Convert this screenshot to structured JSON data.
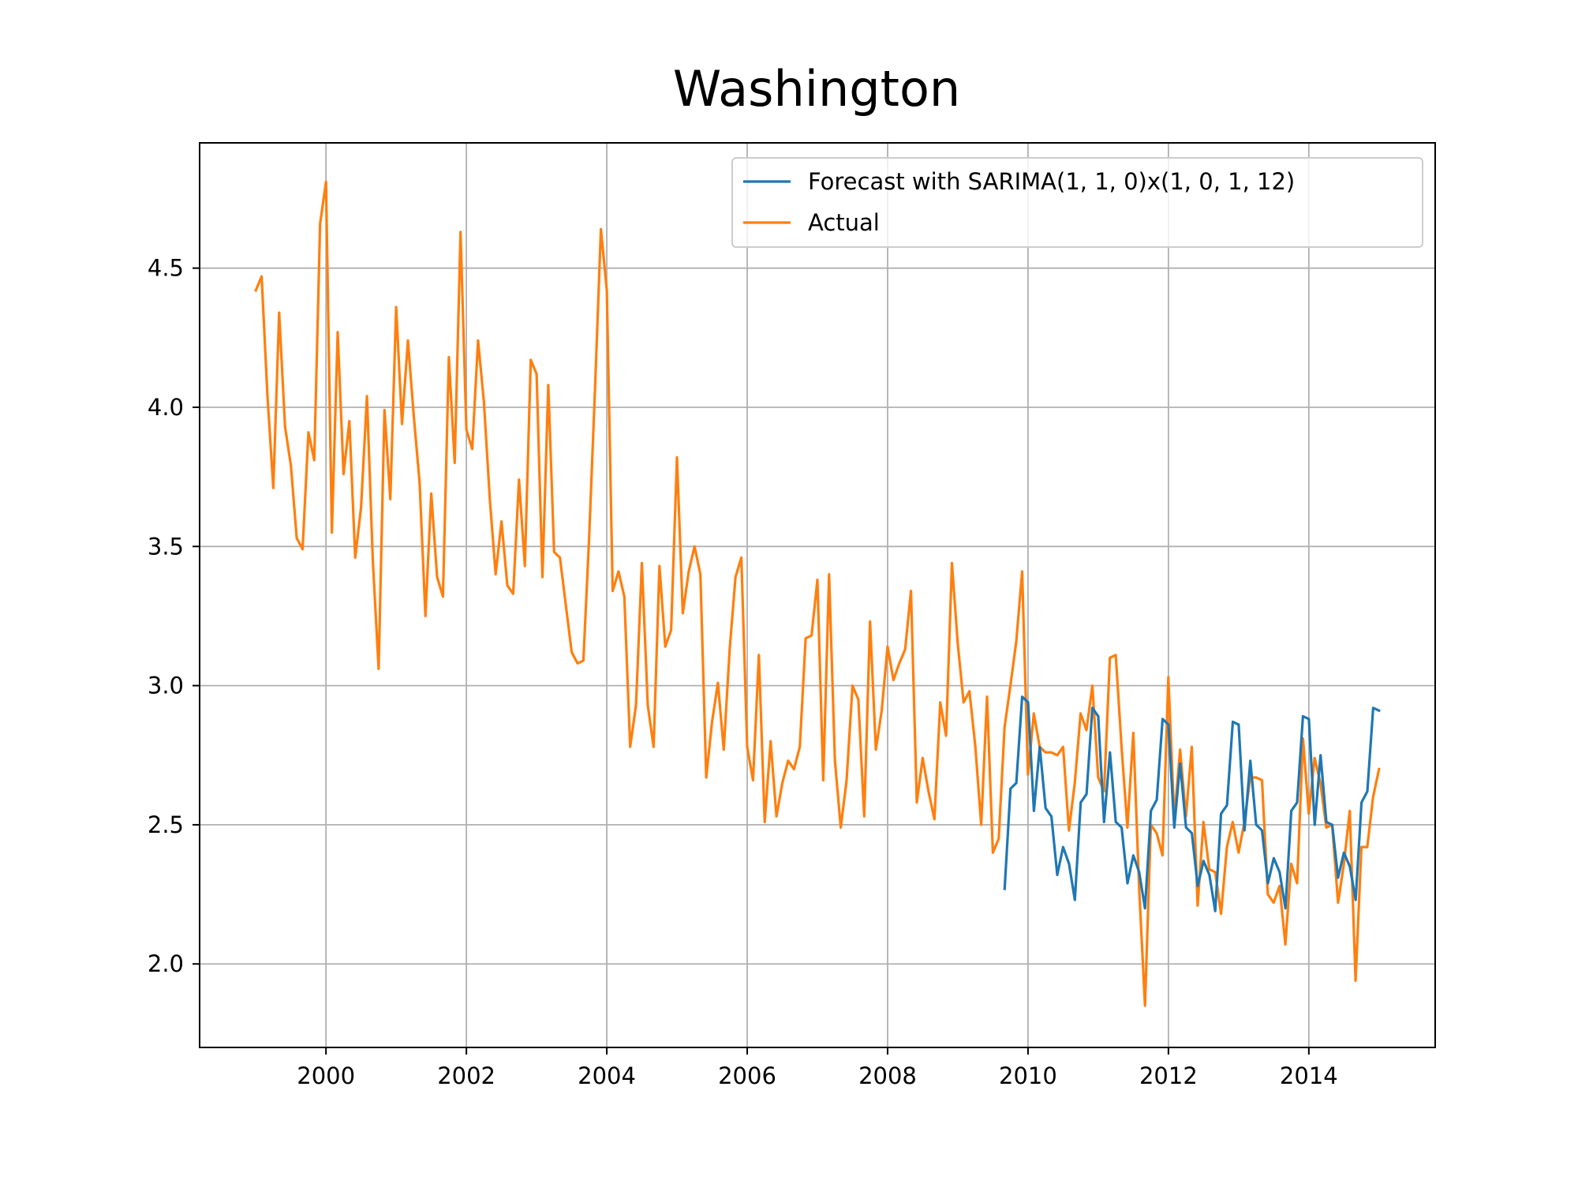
{
  "chart_data": {
    "type": "line",
    "title": "Washington",
    "xlabel": "",
    "ylabel": "",
    "xlim": [
      1998.2,
      2015.8
    ],
    "ylim": [
      1.7,
      4.95
    ],
    "x_ticks": [
      2000,
      2002,
      2004,
      2006,
      2008,
      2010,
      2012,
      2014
    ],
    "x_tick_labels": [
      "2000",
      "2002",
      "2004",
      "2006",
      "2008",
      "2010",
      "2012",
      "2014"
    ],
    "y_ticks": [
      2.0,
      2.5,
      3.0,
      3.5,
      4.0,
      4.5
    ],
    "y_tick_labels": [
      "2.0",
      "2.5",
      "3.0",
      "3.5",
      "4.0",
      "4.5"
    ],
    "grid": true,
    "legend_position": "top-right",
    "series": [
      {
        "name": "Forecast with SARIMA(1, 1, 0)x(1, 0, 1, 12)",
        "color": "#1f77b4",
        "x_start": 2009.667,
        "x_step": 0.08333,
        "values": [
          2.27,
          2.63,
          2.65,
          2.96,
          2.94,
          2.55,
          2.78,
          2.56,
          2.53,
          2.32,
          2.42,
          2.36,
          2.23,
          2.58,
          2.61,
          2.92,
          2.89,
          2.51,
          2.76,
          2.51,
          2.49,
          2.29,
          2.39,
          2.33,
          2.2,
          2.55,
          2.59,
          2.88,
          2.86,
          2.49,
          2.72,
          2.49,
          2.47,
          2.28,
          2.37,
          2.32,
          2.19,
          2.54,
          2.57,
          2.87,
          2.86,
          2.48,
          2.73,
          2.5,
          2.48,
          2.29,
          2.38,
          2.33,
          2.2,
          2.55,
          2.58,
          2.89,
          2.88,
          2.5,
          2.75,
          2.51,
          2.5,
          2.31,
          2.4,
          2.35,
          2.23,
          2.58,
          2.62,
          2.92,
          2.91
        ]
      },
      {
        "name": "Actual",
        "color": "#ff7f0e",
        "x_start": 1999.0,
        "x_step": 0.08333,
        "values": [
          4.42,
          4.47,
          4.04,
          3.71,
          4.34,
          3.93,
          3.79,
          3.53,
          3.49,
          3.91,
          3.81,
          4.66,
          4.81,
          3.55,
          4.27,
          3.76,
          3.95,
          3.46,
          3.64,
          4.04,
          3.45,
          3.06,
          3.99,
          3.67,
          4.36,
          3.94,
          4.24,
          3.97,
          3.73,
          3.25,
          3.69,
          3.39,
          3.32,
          4.18,
          3.8,
          4.63,
          3.92,
          3.85,
          4.24,
          4.02,
          3.67,
          3.4,
          3.59,
          3.36,
          3.33,
          3.74,
          3.43,
          4.17,
          4.12,
          3.39,
          4.08,
          3.48,
          3.46,
          3.29,
          3.12,
          3.08,
          3.09,
          3.54,
          4.07,
          4.64,
          4.42,
          3.34,
          3.41,
          3.32,
          2.78,
          2.93,
          3.44,
          2.93,
          2.78,
          3.43,
          3.14,
          3.2,
          3.82,
          3.26,
          3.41,
          3.5,
          3.4,
          2.67,
          2.87,
          3.01,
          2.77,
          3.13,
          3.39,
          3.46,
          2.78,
          2.66,
          3.11,
          2.51,
          2.8,
          2.53,
          2.65,
          2.73,
          2.7,
          2.78,
          3.17,
          3.18,
          3.38,
          2.66,
          3.4,
          2.73,
          2.49,
          2.66,
          3.0,
          2.95,
          2.53,
          3.23,
          2.77,
          2.91,
          3.14,
          3.02,
          3.08,
          3.13,
          3.34,
          2.58,
          2.74,
          2.62,
          2.52,
          2.94,
          2.82,
          3.44,
          3.15,
          2.94,
          2.98,
          2.78,
          2.5,
          2.96,
          2.4,
          2.45,
          2.85,
          3.0,
          3.16,
          3.41,
          2.68,
          2.9,
          2.78,
          2.76,
          2.76,
          2.75,
          2.78,
          2.48,
          2.65,
          2.9,
          2.84,
          3.0,
          2.67,
          2.62,
          3.1,
          3.11,
          2.78,
          2.49,
          2.83,
          2.27,
          1.85,
          2.5,
          2.47,
          2.39,
          3.03,
          2.52,
          2.77,
          2.53,
          2.78,
          2.21,
          2.51,
          2.34,
          2.33,
          2.18,
          2.42,
          2.51,
          2.4,
          2.51,
          2.67,
          2.67,
          2.66,
          2.25,
          2.22,
          2.28,
          2.07,
          2.36,
          2.29,
          2.81,
          2.54,
          2.74,
          2.65,
          2.49,
          2.5,
          2.22,
          2.36,
          2.55,
          1.94,
          2.42,
          2.42,
          2.6,
          2.7
        ]
      }
    ]
  }
}
